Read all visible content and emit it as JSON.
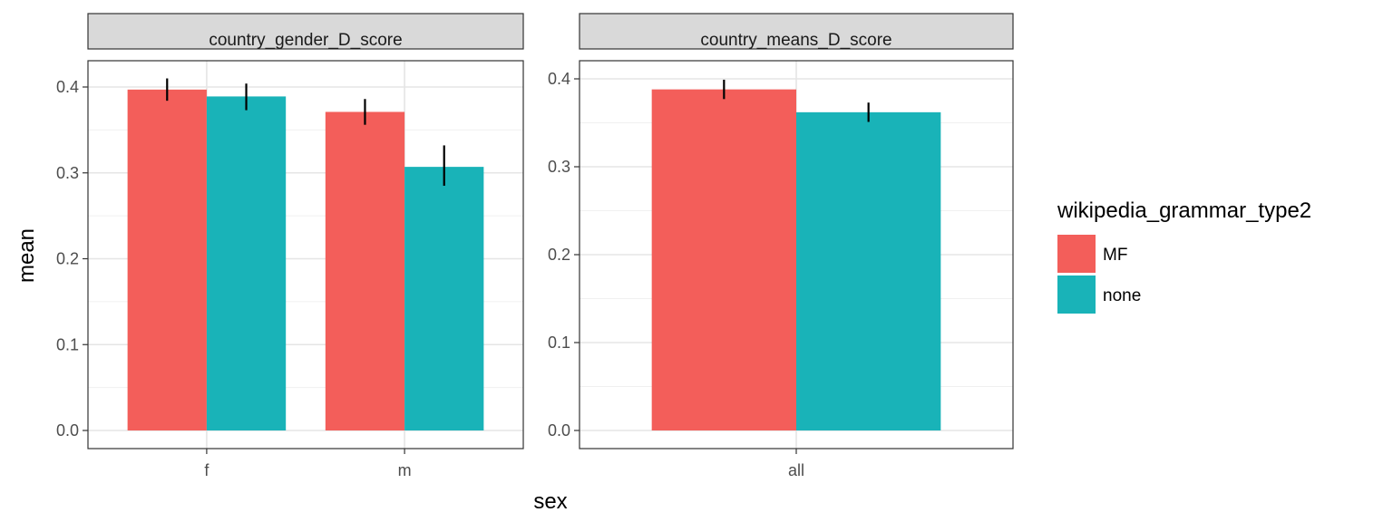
{
  "chart_data": {
    "type": "bar",
    "xlabel": "sex",
    "ylabel": "mean",
    "legend": {
      "title": "wikipedia_grammar_type2",
      "placement": "right",
      "entries": [
        {
          "label": "MF",
          "color": "#F35E5A"
        },
        {
          "label": "none",
          "color": "#19B3B8"
        }
      ]
    },
    "grid": true,
    "panels": [
      {
        "strip": "country_gender_D_score",
        "categories": [
          "f",
          "m"
        ],
        "ylim": [
          0,
          0.4
        ],
        "yticks": [
          "0.0",
          "0.1",
          "0.2",
          "0.3",
          "0.4"
        ],
        "series": [
          {
            "name": "MF",
            "values": [
              0.397,
              0.371
            ],
            "err_low": [
              0.384,
              0.356
            ],
            "err_high": [
              0.41,
              0.386
            ]
          },
          {
            "name": "none",
            "values": [
              0.389,
              0.307
            ],
            "err_low": [
              0.373,
              0.285
            ],
            "err_high": [
              0.404,
              0.332
            ]
          }
        ]
      },
      {
        "strip": "country_means_D_score",
        "categories": [
          "all"
        ],
        "ylim": [
          0,
          0.4
        ],
        "yticks": [
          "0.0",
          "0.1",
          "0.2",
          "0.3",
          "0.4"
        ],
        "series": [
          {
            "name": "MF",
            "values": [
              0.388
            ],
            "err_low": [
              0.377
            ],
            "err_high": [
              0.399
            ]
          },
          {
            "name": "none",
            "values": [
              0.362
            ],
            "err_low": [
              0.351
            ],
            "err_high": [
              0.373
            ]
          }
        ]
      }
    ]
  }
}
